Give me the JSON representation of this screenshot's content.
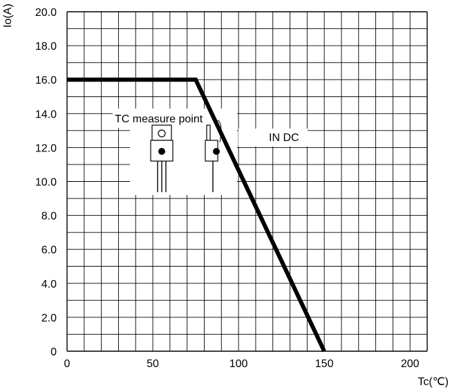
{
  "chart_data": {
    "type": "line",
    "xlabel": "Tc(℃)",
    "ylabel": "Io(A)",
    "xlim": [
      0,
      210
    ],
    "ylim": [
      0,
      20
    ],
    "x_ticks": [
      0,
      50,
      100,
      150,
      200
    ],
    "x_tick_labels": [
      "0",
      "50",
      "100",
      "150",
      "200"
    ],
    "y_ticks": [
      0,
      2,
      4,
      6,
      8,
      10,
      12,
      14,
      16,
      18,
      20
    ],
    "y_tick_labels": [
      "0",
      "2.0",
      "4.0",
      "6.0",
      "8.0",
      "10.0",
      "12.0",
      "14.0",
      "16.0",
      "18.0",
      "20.0"
    ],
    "grid": true,
    "series": [
      {
        "x": [
          0,
          75,
          150
        ],
        "y": [
          16,
          16,
          0
        ],
        "color": "#000000"
      }
    ],
    "annotations": [
      {
        "text": "TC measure point"
      },
      {
        "text": "IN DC"
      }
    ]
  }
}
